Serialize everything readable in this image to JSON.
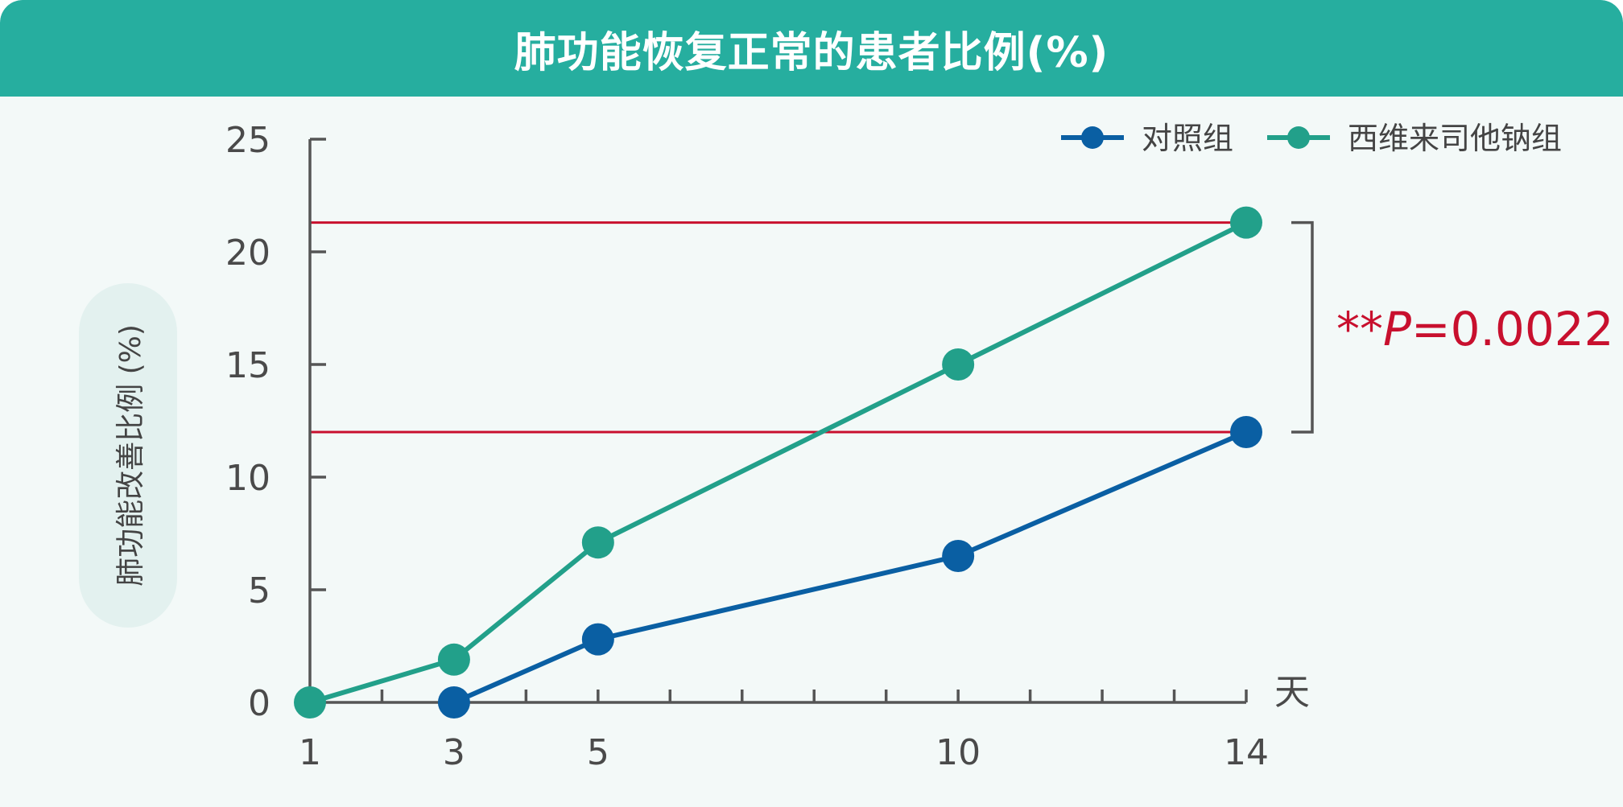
{
  "chart_data": {
    "type": "line",
    "title": "肺功能恢复正常的患者比例(%)",
    "ylabel": "肺功能改善比例 (%)",
    "xlabel": "天",
    "xlim": [
      1,
      14
    ],
    "ylim": [
      0,
      25
    ],
    "x_ticks": [
      1,
      3,
      5,
      10,
      14
    ],
    "y_ticks": [
      0,
      5,
      10,
      15,
      20,
      25
    ],
    "legend_position": "top-right",
    "series": [
      {
        "name": "对照组",
        "color": "#0a5fa3",
        "points": [
          {
            "x": 3,
            "y": 0
          },
          {
            "x": 5,
            "y": 2.8
          },
          {
            "x": 10,
            "y": 6.5
          },
          {
            "x": 14,
            "y": 12.0
          }
        ]
      },
      {
        "name": "西维来司他钠组",
        "color": "#22a08a",
        "points": [
          {
            "x": 1,
            "y": 0
          },
          {
            "x": 3,
            "y": 1.9
          },
          {
            "x": 5,
            "y": 7.1
          },
          {
            "x": 10,
            "y": 15.0
          },
          {
            "x": 14,
            "y": 21.3
          }
        ]
      }
    ],
    "reference_lines": [
      21.3,
      12.0
    ],
    "reference_line_color": "#c8102e",
    "annotation": {
      "stars": "**",
      "p_symbol": "P",
      "p_value": "=0.0022",
      "color": "#c8102e"
    }
  }
}
